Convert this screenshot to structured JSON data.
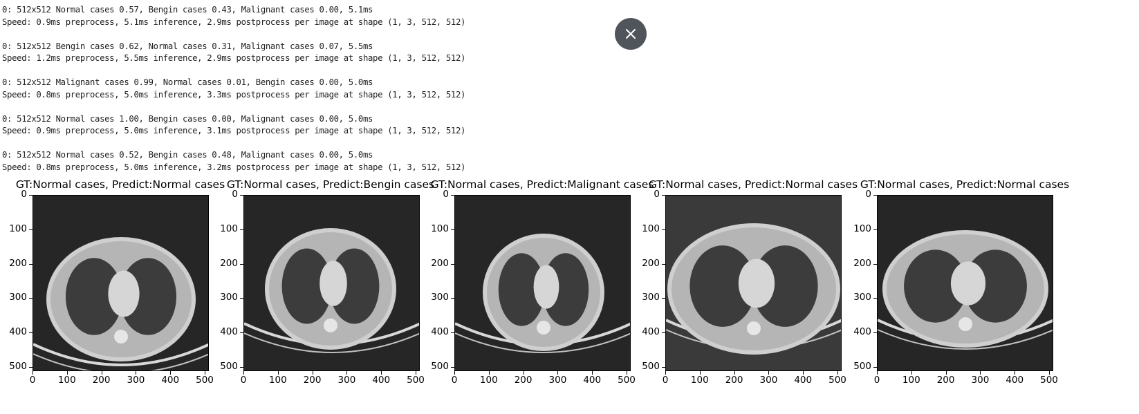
{
  "log_lines": [
    [
      "0: 512x512 Normal cases 0.57, Bengin cases 0.43, Malignant cases 0.00, 5.1ms",
      "Speed: 0.9ms preprocess, 5.1ms inference, 2.9ms postprocess per image at shape (1, 3, 512, 512)"
    ],
    [
      "0: 512x512 Bengin cases 0.62, Normal cases 0.31, Malignant cases 0.07, 5.5ms",
      "Speed: 1.2ms preprocess, 5.5ms inference, 2.9ms postprocess per image at shape (1, 3, 512, 512)"
    ],
    [
      "0: 512x512 Malignant cases 0.99, Normal cases 0.01, Bengin cases 0.00, 5.0ms",
      "Speed: 0.8ms preprocess, 5.0ms inference, 3.3ms postprocess per image at shape (1, 3, 512, 512)"
    ],
    [
      "0: 512x512 Normal cases 1.00, Bengin cases 0.00, Malignant cases 0.00, 5.0ms",
      "Speed: 0.9ms preprocess, 5.0ms inference, 3.1ms postprocess per image at shape (1, 3, 512, 512)"
    ],
    [
      "0: 512x512 Normal cases 0.52, Bengin cases 0.48, Malignant cases 0.00, 5.0ms",
      "Speed: 0.8ms preprocess, 5.0ms inference, 3.2ms postprocess per image at shape (1, 3, 512, 512)"
    ]
  ],
  "close_icon": "close-icon",
  "panels": [
    {
      "title": "GT:Normal cases, Predict:Normal cases",
      "image": "chest-ct-slice"
    },
    {
      "title": "GT:Normal cases, Predict:Bengin cases",
      "image": "chest-ct-slice"
    },
    {
      "title": "GT:Normal cases, Predict:Malignant cases",
      "image": "chest-ct-slice"
    },
    {
      "title": "GT:Normal cases, Predict:Normal cases",
      "image": "chest-ct-slice"
    },
    {
      "title": "GT:Normal cases, Predict:Normal cases",
      "image": "chest-ct-slice"
    }
  ],
  "axis": {
    "ticks": [
      "0",
      "100",
      "200",
      "300",
      "400",
      "500"
    ],
    "tick_values": [
      0,
      100,
      200,
      300,
      400,
      500
    ],
    "range": [
      0,
      512
    ]
  }
}
